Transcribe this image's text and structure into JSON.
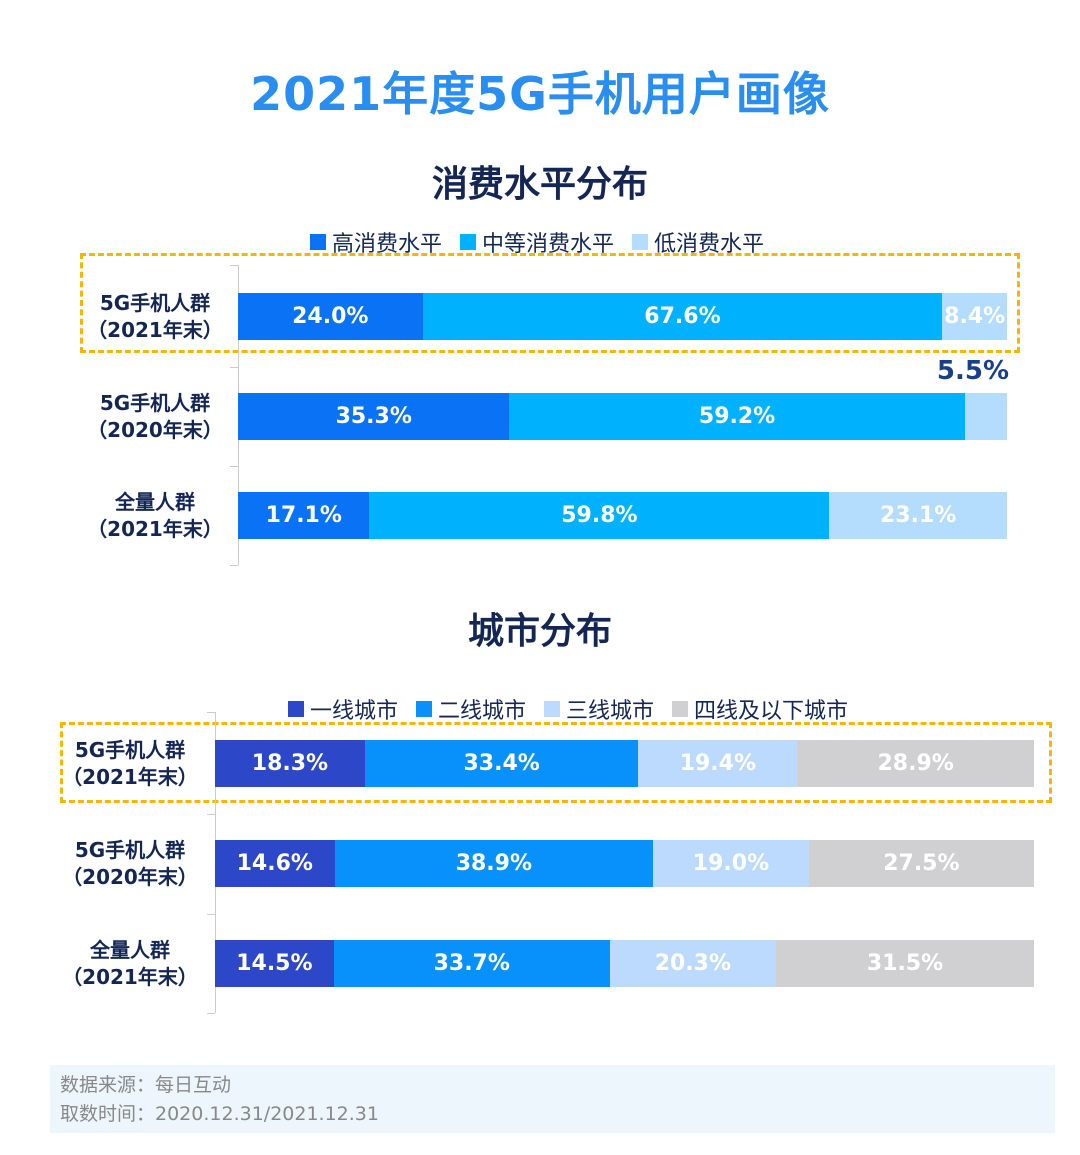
{
  "title": "2021年度5G手机用户画像",
  "footer": {
    "source": "数据来源：每日互动",
    "period": "取数时间：2020.12.31/2021.12.31"
  },
  "chart_data": [
    {
      "type": "bar",
      "stacked": true,
      "orientation": "horizontal",
      "title": "消费水平分布",
      "categories": [
        "5G手机人群（2021年末）",
        "5G手机人群（2020年末）",
        "全量人群（2021年末）"
      ],
      "category_lines": [
        [
          "5G手机人群",
          "（2021年末）"
        ],
        [
          "5G手机人群",
          "（2020年末）"
        ],
        [
          "全量人群",
          "（2021年末）"
        ]
      ],
      "series": [
        {
          "name": "高消费水平",
          "color": "#0a73f5",
          "values": [
            24.0,
            35.3,
            17.1
          ]
        },
        {
          "name": "中等消费水平",
          "color": "#00b2fd",
          "values": [
            67.6,
            59.2,
            59.8
          ]
        },
        {
          "name": "低消费水平",
          "color": "#b3dcfd",
          "values": [
            8.4,
            5.5,
            23.1
          ]
        }
      ],
      "labels": [
        [
          "24.0%",
          "67.6%",
          "8.4%"
        ],
        [
          "35.3%",
          "59.2%",
          "5.5%"
        ],
        [
          "17.1%",
          "59.8%",
          "23.1%"
        ]
      ],
      "highlighted_category": 0,
      "legend": "top",
      "xlim": [
        0,
        100
      ]
    },
    {
      "type": "bar",
      "stacked": true,
      "orientation": "horizontal",
      "title": "城市分布",
      "categories": [
        "5G手机人群（2021年末）",
        "5G手机人群（2020年末）",
        "全量人群（2021年末）"
      ],
      "category_lines": [
        [
          "5G手机人群",
          "（2021年末）"
        ],
        [
          "5G手机人群",
          "（2020年末）"
        ],
        [
          "全量人群",
          "（2021年末）"
        ]
      ],
      "series": [
        {
          "name": "一线城市",
          "color": "#2c48c8",
          "values": [
            18.3,
            14.6,
            14.5
          ]
        },
        {
          "name": "二线城市",
          "color": "#0890fb",
          "values": [
            33.4,
            38.9,
            33.7
          ]
        },
        {
          "name": "三线城市",
          "color": "#bcdafd",
          "values": [
            19.4,
            19.0,
            20.3
          ]
        },
        {
          "name": "四线及以下城市",
          "color": "#d0cfd1",
          "values": [
            28.9,
            27.5,
            31.5
          ]
        }
      ],
      "labels": [
        [
          "18.3%",
          "33.4%",
          "19.4%",
          "28.9%"
        ],
        [
          "14.6%",
          "38.9%",
          "19.0%",
          "27.5%"
        ],
        [
          "14.5%",
          "33.7%",
          "20.3%",
          "31.5%"
        ]
      ],
      "highlighted_category": 0,
      "legend": "top",
      "xlim": [
        0,
        100
      ]
    }
  ]
}
